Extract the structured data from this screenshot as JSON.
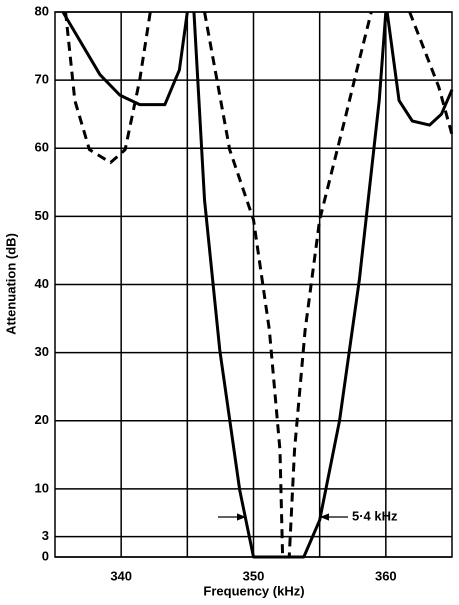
{
  "chart_data": {
    "type": "line",
    "x_label": "Frequency (kHz)",
    "y_label": "Attenuation (dB)",
    "xlim": [
      335,
      365
    ],
    "xticks": [
      340,
      350,
      360
    ],
    "xminor": [
      345,
      355
    ],
    "ylim": [
      0,
      80
    ],
    "yticks": [
      0,
      3,
      10,
      20,
      30,
      40,
      50,
      60,
      70,
      80
    ],
    "grid": true,
    "annotation": "5·4 kHz",
    "series": [
      {
        "color": "#000000",
        "style": "solid",
        "x": [
          335.6,
          338.4,
          339.9,
          341.4,
          343.3,
          344.4,
          345,
          null,
          345.5,
          346.3,
          347.45,
          348.96,
          350,
          353.8,
          355,
          356.5,
          358,
          359.5,
          360,
          null,
          360.1,
          361,
          362,
          363.3,
          364.2,
          365
        ],
        "values": [
          80,
          70.8,
          67.8,
          66.4,
          66.4,
          71.5,
          80,
          null,
          80,
          52.4,
          30.4,
          9.8,
          0,
          0,
          5.4,
          20,
          40.7,
          67,
          80,
          null,
          80,
          67,
          64,
          63.4,
          65,
          68.6
        ]
      },
      {
        "color": "#000000",
        "style": "dashed",
        "x": [
          335.8,
          336.5,
          337.6,
          339.2,
          340.3,
          341.4,
          342.2,
          null,
          346.3,
          348.2,
          350,
          351.2,
          352,
          352.2,
          352.7,
          353.1,
          353.9,
          355,
          356.9,
          358,
          358.9,
          null,
          361.8,
          363,
          364,
          365
        ],
        "values": [
          80,
          67,
          59.8,
          57.9,
          59.8,
          70,
          80,
          null,
          80,
          59.8,
          49.5,
          33.3,
          15.7,
          0,
          0,
          15.7,
          33.3,
          49.5,
          64.2,
          73,
          80,
          null,
          80,
          74,
          69,
          62
        ]
      }
    ]
  }
}
